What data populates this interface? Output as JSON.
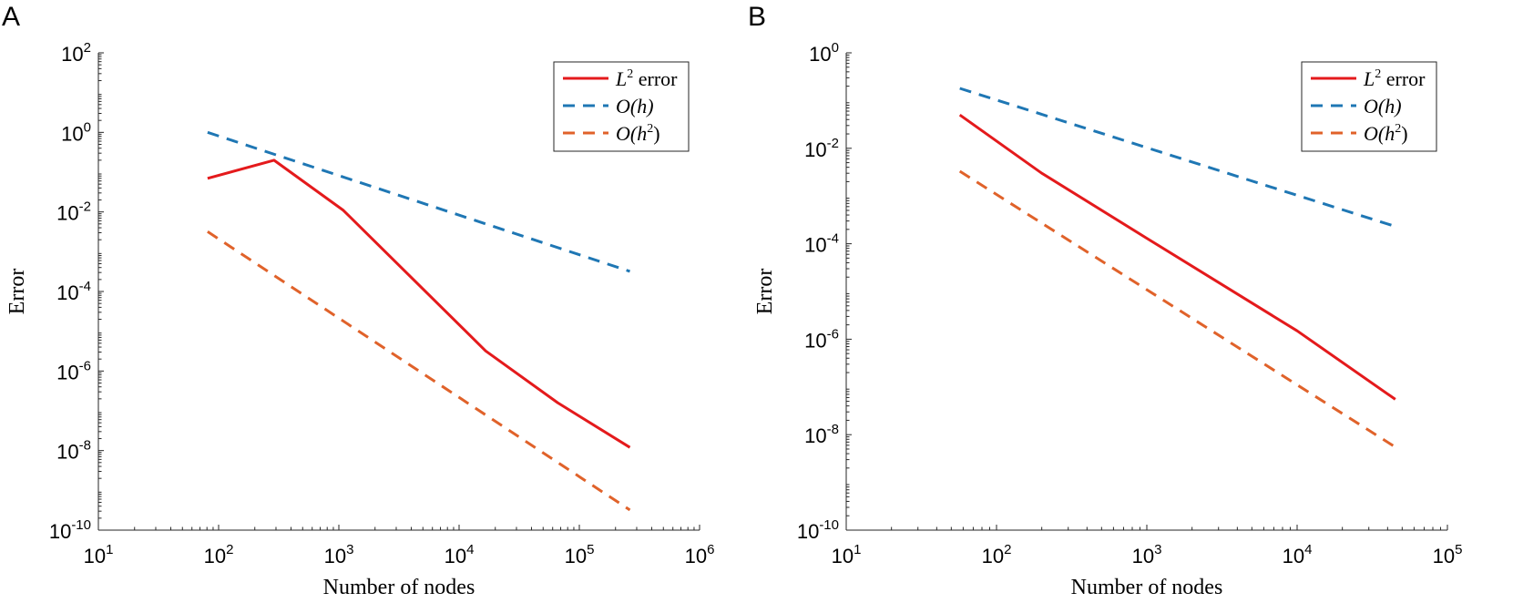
{
  "chart_data": [
    {
      "panel_label": "A",
      "type": "line",
      "scale": "loglog",
      "xlabel": "Number of nodes",
      "ylabel": "Error",
      "xlim": [
        10,
        1000000
      ],
      "ylim": [
        1e-10,
        100
      ],
      "x_ticks": [
        {
          "exp": "1"
        },
        {
          "exp": "2"
        },
        {
          "exp": "3"
        },
        {
          "exp": "4"
        },
        {
          "exp": "5"
        },
        {
          "exp": "6"
        }
      ],
      "y_ticks": [
        {
          "exp": "-10"
        },
        {
          "exp": "-8"
        },
        {
          "exp": "-6"
        },
        {
          "exp": "-4"
        },
        {
          "exp": "-2"
        },
        {
          "exp": "0"
        },
        {
          "exp": "2"
        }
      ],
      "tick_base": "10",
      "legend": {
        "location": "top-right",
        "entries": [
          {
            "label_main": "L",
            "label_sup": "2",
            "label_rest": " error"
          },
          {
            "label_main": "O(h)",
            "label_sup": "",
            "label_rest": ""
          },
          {
            "label_main": "O(h",
            "label_sup": "2",
            "label_rest": ")"
          }
        ]
      },
      "series": [
        {
          "name": "L2 error",
          "color": "#e41a1c",
          "dash": "solid",
          "x": [
            81,
            289,
            1089,
            16641,
            66049,
            263169
          ],
          "y": [
            0.07,
            0.2,
            0.011,
            3.2e-06,
            1.6e-07,
            1.2e-08
          ]
        },
        {
          "name": "O(h)",
          "color": "#1f77b4",
          "dash": "dashed",
          "x": [
            81,
            263169
          ],
          "y": [
            1.0,
            0.00032
          ]
        },
        {
          "name": "O(h^2)",
          "color": "#e0622a",
          "dash": "dashed",
          "x": [
            81,
            263169
          ],
          "y": [
            0.0032,
            3.2e-10
          ]
        }
      ]
    },
    {
      "panel_label": "B",
      "type": "line",
      "scale": "loglog",
      "xlabel": "Number of nodes",
      "ylabel": "Error",
      "xlim": [
        10,
        100000
      ],
      "ylim": [
        1e-10,
        1
      ],
      "x_ticks": [
        {
          "exp": "1"
        },
        {
          "exp": "2"
        },
        {
          "exp": "3"
        },
        {
          "exp": "4"
        },
        {
          "exp": "5"
        }
      ],
      "y_ticks": [
        {
          "exp": "-10"
        },
        {
          "exp": "-8"
        },
        {
          "exp": "-6"
        },
        {
          "exp": "-4"
        },
        {
          "exp": "-2"
        },
        {
          "exp": "0"
        }
      ],
      "tick_base": "10",
      "legend": {
        "location": "top-right",
        "entries": [
          {
            "label_main": "L",
            "label_sup": "2",
            "label_rest": " error"
          },
          {
            "label_main": "O(h)",
            "label_sup": "",
            "label_rest": ""
          },
          {
            "label_main": "O(h",
            "label_sup": "2",
            "label_rest": ")"
          }
        ]
      },
      "series": [
        {
          "name": "L2 error",
          "color": "#e41a1c",
          "dash": "solid",
          "x": [
            57,
            200,
            1000,
            10000,
            45000
          ],
          "y": [
            0.05,
            0.003,
            0.00013,
            1.5e-06,
            5.5e-08
          ]
        },
        {
          "name": "O(h)",
          "color": "#1f77b4",
          "dash": "dashed",
          "x": [
            57,
            45000
          ],
          "y": [
            0.18,
            0.00023
          ]
        },
        {
          "name": "O(h^2)",
          "color": "#e0622a",
          "dash": "dashed",
          "x": [
            57,
            45000
          ],
          "y": [
            0.0033,
            5.5e-09
          ]
        }
      ]
    }
  ]
}
